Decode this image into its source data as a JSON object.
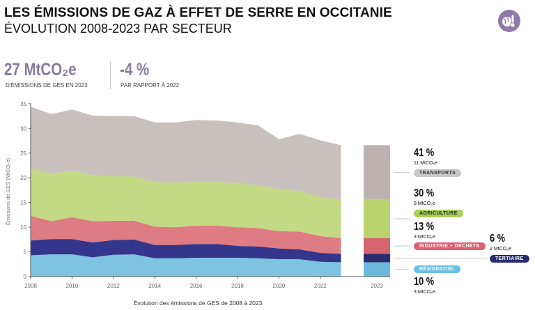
{
  "header": {
    "title": "LES ÉMISSIONS DE GAZ À EFFET DE SERRE EN OCCITANIE",
    "subtitle": "ÉVOLUTION 2008-2023 PAR SECTEUR",
    "logo_icon": "globe-thermometer-icon"
  },
  "kpis": [
    {
      "value": "27 MtCO₂e",
      "label": "D'ÉMISSIONS DE GES EN 2023"
    },
    {
      "value": "-4 %",
      "label": "PAR RAPPORT À 2022"
    }
  ],
  "chart_data": {
    "type": "area",
    "stacked": true,
    "xlabel": "Évolution des émissions de GES de 2008 à 2023",
    "ylabel": "Émissions de GES (MtCO₂e)",
    "x": [
      2008,
      2009,
      2010,
      2011,
      2012,
      2013,
      2014,
      2015,
      2016,
      2017,
      2018,
      2019,
      2020,
      2021,
      2022,
      2023
    ],
    "xticks": [
      "2008",
      "2010",
      "2012",
      "2014",
      "2016",
      "2018",
      "2020",
      "2022"
    ],
    "yticks": [
      "0",
      "5",
      "10",
      "15",
      "20",
      "25",
      "30",
      "35"
    ],
    "ylim": [
      0,
      36
    ],
    "bar_label": "2023",
    "series": [
      {
        "name": "RÉSIDENTIEL",
        "color": "#7fc3e2",
        "values": [
          4.3,
          4.5,
          4.5,
          3.9,
          4.4,
          4.5,
          3.7,
          3.7,
          3.8,
          3.8,
          3.8,
          3.7,
          3.5,
          3.5,
          3.0,
          2.9
        ]
      },
      {
        "name": "TERTIAIRE",
        "color": "#33368a",
        "values": [
          3.0,
          3.1,
          3.1,
          3.0,
          3.0,
          3.0,
          2.7,
          2.7,
          2.8,
          2.8,
          2.4,
          2.4,
          2.2,
          2.0,
          1.8,
          1.7
        ]
      },
      {
        "name": "INDUSTRIE + DÉCHETS",
        "color": "#df7b82",
        "values": [
          5.0,
          3.6,
          4.4,
          4.3,
          3.9,
          3.8,
          3.7,
          3.6,
          3.7,
          3.7,
          3.8,
          3.7,
          3.5,
          3.6,
          3.4,
          3.2
        ]
      },
      {
        "name": "AGRICULTURE",
        "color": "#c3d983",
        "values": [
          9.7,
          9.6,
          9.5,
          9.3,
          9.0,
          9.0,
          9.0,
          9.0,
          8.9,
          8.9,
          8.9,
          8.7,
          8.5,
          8.2,
          7.9,
          7.8
        ]
      },
      {
        "name": "TRANSPORTS",
        "color": "#c8c0bd",
        "values": [
          12.4,
          12.1,
          12.3,
          12.1,
          12.2,
          12.2,
          12.1,
          12.2,
          12.5,
          12.4,
          12.3,
          12.1,
          10.1,
          11.6,
          11.5,
          11.0
        ]
      }
    ],
    "bar_colors": [
      "#6bb8db",
      "#2b2c70",
      "#d4646d",
      "#bad36f",
      "#bcb3b0"
    ],
    "annotations": [
      {
        "pct": "41 %",
        "mt": "11 MtCO₂e",
        "label": "TRANSPORTS",
        "pill_color": "#c8c8c8",
        "text_color": "#333"
      },
      {
        "pct": "30 %",
        "mt": "8 MtCO₂e",
        "label": "AGRICULTURE",
        "pill_color": "#a9cf55",
        "text_color": "#223"
      },
      {
        "pct": "13 %",
        "mt": "3 MtCO₂e",
        "label": "INDUSTRIE + DÉCHETS",
        "pill_color": "#e06070",
        "text_color": "#fff"
      },
      {
        "pct": "6 %",
        "mt": "2 MtCO₂e",
        "label": "TERTIAIRE",
        "pill_color": "#2b2c70",
        "text_color": "#fff"
      },
      {
        "pct": "10 %",
        "mt": "3 MtCO₂e",
        "label": "RÉSIDENTIEL",
        "pill_color": "#6bc0e6",
        "text_color": "#fff"
      }
    ]
  }
}
